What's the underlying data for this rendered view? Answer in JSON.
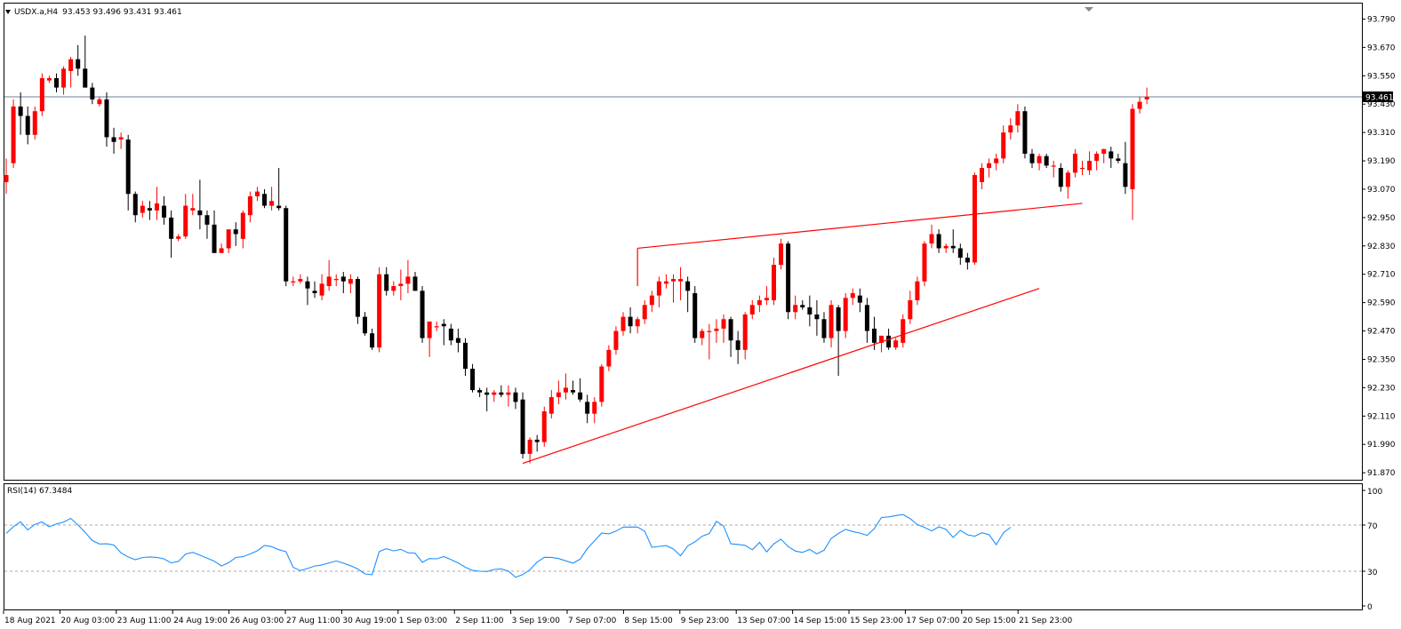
{
  "header": {
    "symbol": "USDX.a,H4",
    "open": "93.453",
    "high": "93.496",
    "low": "93.431",
    "close": "93.461"
  },
  "rsi_header": {
    "label": "RSI(14) 67.3484"
  },
  "colors": {
    "bull": "#ff0000",
    "bear": "#000000",
    "grid_line": "#708090",
    "trendline": "#ff0000",
    "rsi_line": "#1e90ff",
    "price_tag_bg": "#000000",
    "price_tag_text": "#ffffff"
  },
  "chart_data": [
    {
      "type": "candlestick",
      "ylim": [
        91.83,
        93.83
      ],
      "yticks": [
        "93.790",
        "93.670",
        "93.550",
        "93.430",
        "93.310",
        "93.190",
        "93.070",
        "92.950",
        "92.830",
        "92.710",
        "92.590",
        "92.470",
        "92.350",
        "92.230",
        "92.110",
        "91.990",
        "91.870"
      ],
      "current_price": {
        "value": 93.461,
        "label": "93.461"
      },
      "xtick_labels": [
        "18 Aug 2021",
        "20 Aug 03:00",
        "23 Aug 11:00",
        "24 Aug 19:00",
        "26 Aug 03:00",
        "27 Aug 11:00",
        "30 Aug 19:00",
        "1 Sep 03:00",
        "2 Sep 11:00",
        "3 Sep 19:00",
        "7 Sep 07:00",
        "8 Sep 15:00",
        "9 Sep 23:00",
        "13 Sep 07:00",
        "14 Sep 15:00",
        "15 Sep 23:00",
        "17 Sep 07:00",
        "20 Sep 15:00",
        "21 Sep 23:00"
      ],
      "candles": [
        [
          93.1,
          93.2,
          93.05,
          93.13
        ],
        [
          93.18,
          93.45,
          93.16,
          93.42
        ],
        [
          93.42,
          93.48,
          93.3,
          93.38
        ],
        [
          93.38,
          93.42,
          93.26,
          93.3
        ],
        [
          93.3,
          93.42,
          93.28,
          93.4
        ],
        [
          93.4,
          93.56,
          93.38,
          93.54
        ],
        [
          93.53,
          93.55,
          93.52,
          93.54
        ],
        [
          93.54,
          93.56,
          93.48,
          93.5
        ],
        [
          93.5,
          93.59,
          93.47,
          93.58
        ],
        [
          93.57,
          93.63,
          93.5,
          93.62
        ],
        [
          93.62,
          93.68,
          93.55,
          93.58
        ],
        [
          93.58,
          93.72,
          93.5,
          93.5
        ],
        [
          93.5,
          93.52,
          93.43,
          93.45
        ],
        [
          93.43,
          93.46,
          93.42,
          93.45
        ],
        [
          93.45,
          93.48,
          93.25,
          93.29
        ],
        [
          93.29,
          93.33,
          93.22,
          93.27
        ],
        [
          93.28,
          93.31,
          93.24,
          93.29
        ],
        [
          93.28,
          93.3,
          92.98,
          93.05
        ],
        [
          93.05,
          93.06,
          92.93,
          92.96
        ],
        [
          92.97,
          93.02,
          92.95,
          93.0
        ],
        [
          92.99,
          93.02,
          92.94,
          92.98
        ],
        [
          92.98,
          93.08,
          92.94,
          93.01
        ],
        [
          93.0,
          93.04,
          92.92,
          92.95
        ],
        [
          92.95,
          92.98,
          92.78,
          92.86
        ],
        [
          92.86,
          92.88,
          92.85,
          92.87
        ],
        [
          92.87,
          93.05,
          92.86,
          93.0
        ],
        [
          92.98,
          93.05,
          92.96,
          92.99
        ],
        [
          92.98,
          93.11,
          92.9,
          92.96
        ],
        [
          92.96,
          92.98,
          92.86,
          92.92
        ],
        [
          92.92,
          92.98,
          92.8,
          92.8
        ],
        [
          92.8,
          92.84,
          92.8,
          92.82
        ],
        [
          92.82,
          92.9,
          92.8,
          92.9
        ],
        [
          92.9,
          92.93,
          92.83,
          92.88
        ],
        [
          92.86,
          92.98,
          92.82,
          92.97
        ],
        [
          92.96,
          93.06,
          92.93,
          93.04
        ],
        [
          93.04,
          93.08,
          93.02,
          93.06
        ],
        [
          93.05,
          93.07,
          92.99,
          93.0
        ],
        [
          93.0,
          93.08,
          92.98,
          93.02
        ],
        [
          93.0,
          93.16,
          92.98,
          92.99
        ],
        [
          92.99,
          93.0,
          92.66,
          92.68
        ],
        [
          92.68,
          92.7,
          92.66,
          92.68
        ],
        [
          92.68,
          92.71,
          92.67,
          92.69
        ],
        [
          92.68,
          92.7,
          92.58,
          92.65
        ],
        [
          92.64,
          92.68,
          92.61,
          92.63
        ],
        [
          92.62,
          92.71,
          92.6,
          92.67
        ],
        [
          92.66,
          92.77,
          92.64,
          92.7
        ],
        [
          92.69,
          92.71,
          92.66,
          92.69
        ],
        [
          92.7,
          92.72,
          92.63,
          92.68
        ],
        [
          92.67,
          92.71,
          92.63,
          92.69
        ],
        [
          92.69,
          92.7,
          92.5,
          92.53
        ],
        [
          92.53,
          92.55,
          92.45,
          92.46
        ],
        [
          92.46,
          92.48,
          92.39,
          92.4
        ],
        [
          92.4,
          92.74,
          92.38,
          92.71
        ],
        [
          92.71,
          92.74,
          92.62,
          92.64
        ],
        [
          92.64,
          92.68,
          92.62,
          92.66
        ],
        [
          92.66,
          92.73,
          92.6,
          92.67
        ],
        [
          92.67,
          92.77,
          92.63,
          92.7
        ],
        [
          92.7,
          92.72,
          92.64,
          92.64
        ],
        [
          92.64,
          92.66,
          92.42,
          92.44
        ],
        [
          92.44,
          92.51,
          92.36,
          92.51
        ],
        [
          92.49,
          92.51,
          92.47,
          92.49
        ],
        [
          92.5,
          92.52,
          92.41,
          92.49
        ],
        [
          92.48,
          92.5,
          92.41,
          92.43
        ],
        [
          92.44,
          92.48,
          92.38,
          92.42
        ],
        [
          92.42,
          92.44,
          92.28,
          92.31
        ],
        [
          92.31,
          92.33,
          92.21,
          92.22
        ],
        [
          92.22,
          92.23,
          92.19,
          92.21
        ],
        [
          92.21,
          92.23,
          92.13,
          92.2
        ],
        [
          92.2,
          92.22,
          92.17,
          92.21
        ],
        [
          92.21,
          92.24,
          92.19,
          92.2
        ],
        [
          92.2,
          92.24,
          92.15,
          92.21
        ],
        [
          92.21,
          92.23,
          92.14,
          92.17
        ],
        [
          92.18,
          92.21,
          91.93,
          91.95
        ],
        [
          91.95,
          92.02,
          91.91,
          92.01
        ],
        [
          92.01,
          92.03,
          91.96,
          92.0
        ],
        [
          92.0,
          92.15,
          91.98,
          92.13
        ],
        [
          92.12,
          92.22,
          92.1,
          92.19
        ],
        [
          92.19,
          92.26,
          92.16,
          92.21
        ],
        [
          92.21,
          92.29,
          92.18,
          92.23
        ],
        [
          92.22,
          92.26,
          92.2,
          92.21
        ],
        [
          92.21,
          92.27,
          92.17,
          92.18
        ],
        [
          92.17,
          92.2,
          92.08,
          92.12
        ],
        [
          92.12,
          92.19,
          92.08,
          92.17
        ],
        [
          92.17,
          92.33,
          92.15,
          92.32
        ],
        [
          92.32,
          92.41,
          92.3,
          92.39
        ],
        [
          92.39,
          92.49,
          92.37,
          92.47
        ],
        [
          92.47,
          92.55,
          92.45,
          92.53
        ],
        [
          92.53,
          92.57,
          92.46,
          92.49
        ],
        [
          92.49,
          92.53,
          92.46,
          92.52
        ],
        [
          92.52,
          92.6,
          92.5,
          92.58
        ],
        [
          92.58,
          92.64,
          92.55,
          92.62
        ],
        [
          92.62,
          92.7,
          92.57,
          92.68
        ],
        [
          92.67,
          92.71,
          92.65,
          92.68
        ],
        [
          92.68,
          92.71,
          92.59,
          92.69
        ],
        [
          92.68,
          92.74,
          92.6,
          92.69
        ],
        [
          92.68,
          92.7,
          92.55,
          92.64
        ],
        [
          92.63,
          92.66,
          92.42,
          92.44
        ],
        [
          92.44,
          92.48,
          92.41,
          92.47
        ],
        [
          92.47,
          92.5,
          92.35,
          92.47
        ],
        [
          92.47,
          92.52,
          92.42,
          92.48
        ],
        [
          92.48,
          92.54,
          92.42,
          92.52
        ],
        [
          92.52,
          92.53,
          92.36,
          92.43
        ],
        [
          92.43,
          92.47,
          92.33,
          92.39
        ],
        [
          92.39,
          92.55,
          92.35,
          92.54
        ],
        [
          92.54,
          92.6,
          92.52,
          92.58
        ],
        [
          92.58,
          92.62,
          92.55,
          92.6
        ],
        [
          92.6,
          92.66,
          92.58,
          92.61
        ],
        [
          92.6,
          92.78,
          92.58,
          92.75
        ],
        [
          92.75,
          92.86,
          92.73,
          92.84
        ],
        [
          92.84,
          92.85,
          92.52,
          92.55
        ],
        [
          92.55,
          92.62,
          92.52,
          92.58
        ],
        [
          92.58,
          92.6,
          92.56,
          92.57
        ],
        [
          92.57,
          92.62,
          92.49,
          92.54
        ],
        [
          92.54,
          92.6,
          92.45,
          92.52
        ],
        [
          92.52,
          92.55,
          92.42,
          92.44
        ],
        [
          92.44,
          92.6,
          92.4,
          92.58
        ],
        [
          92.57,
          92.58,
          92.28,
          92.47
        ],
        [
          92.47,
          92.63,
          92.44,
          92.61
        ],
        [
          92.61,
          92.65,
          92.58,
          92.63
        ],
        [
          92.62,
          92.65,
          92.55,
          92.59
        ],
        [
          92.58,
          92.61,
          92.42,
          92.47
        ],
        [
          92.48,
          92.53,
          92.39,
          92.42
        ],
        [
          92.42,
          92.45,
          92.38,
          92.45
        ],
        [
          92.45,
          92.48,
          92.39,
          92.4
        ],
        [
          92.4,
          92.44,
          92.39,
          92.43
        ],
        [
          92.42,
          92.54,
          92.4,
          92.52
        ],
        [
          92.52,
          92.64,
          92.5,
          92.6
        ],
        [
          92.6,
          92.7,
          92.58,
          92.68
        ],
        [
          92.68,
          92.85,
          92.66,
          92.84
        ],
        [
          92.84,
          92.92,
          92.82,
          92.88
        ],
        [
          92.88,
          92.9,
          92.8,
          92.82
        ],
        [
          92.82,
          92.84,
          92.8,
          92.83
        ],
        [
          92.83,
          92.9,
          92.8,
          92.82
        ],
        [
          92.82,
          92.84,
          92.75,
          92.78
        ],
        [
          92.78,
          92.8,
          92.73,
          92.76
        ],
        [
          92.76,
          93.14,
          92.75,
          93.13
        ],
        [
          93.1,
          93.18,
          93.07,
          93.16
        ],
        [
          93.16,
          93.2,
          93.12,
          93.18
        ],
        [
          93.18,
          93.22,
          93.15,
          93.2
        ],
        [
          93.2,
          93.34,
          93.18,
          93.31
        ],
        [
          93.31,
          93.37,
          93.28,
          93.34
        ],
        [
          93.34,
          93.43,
          93.31,
          93.4
        ],
        [
          93.4,
          93.42,
          93.2,
          93.22
        ],
        [
          93.22,
          93.24,
          93.16,
          93.18
        ],
        [
          93.18,
          93.22,
          93.15,
          93.21
        ],
        [
          93.21,
          93.22,
          93.16,
          93.17
        ],
        [
          93.17,
          93.19,
          93.12,
          93.17
        ],
        [
          93.16,
          93.18,
          93.06,
          93.08
        ],
        [
          93.08,
          93.15,
          93.03,
          93.14
        ],
        [
          93.14,
          93.24,
          93.12,
          93.22
        ],
        [
          93.16,
          93.19,
          93.13,
          93.16
        ],
        [
          93.15,
          93.23,
          93.13,
          93.19
        ],
        [
          93.19,
          93.23,
          93.15,
          93.22
        ],
        [
          93.22,
          93.24,
          93.18,
          93.24
        ],
        [
          93.23,
          93.25,
          93.16,
          93.2
        ],
        [
          93.2,
          93.22,
          93.18,
          93.19
        ],
        [
          93.18,
          93.27,
          93.05,
          93.08
        ],
        [
          93.07,
          93.43,
          92.94,
          93.41
        ],
        [
          93.41,
          93.46,
          93.39,
          93.44
        ],
        [
          93.45,
          93.5,
          93.43,
          93.46
        ]
      ],
      "annotations": [
        {
          "kind": "trendline",
          "from": [
            72,
            91.91
          ],
          "to": [
            144,
            92.65
          ]
        },
        {
          "kind": "trendline",
          "from": [
            88,
            92.82
          ],
          "to": [
            150,
            93.01
          ]
        },
        {
          "kind": "vline",
          "from": [
            88,
            92.82
          ],
          "to": [
            88,
            92.66
          ]
        }
      ]
    },
    {
      "type": "line",
      "name": "RSI(14) 67.3484",
      "ylim": [
        0,
        100
      ],
      "yticks": [
        "100",
        "70",
        "30",
        "0"
      ],
      "levels": [
        70,
        30
      ],
      "values": [
        62.8,
        68.6,
        72.8,
        65.8,
        70.6,
        72.7,
        68.5,
        70.9,
        72.6,
        75.8,
        70.1,
        63.7,
        56.6,
        53.6,
        53.8,
        52.7,
        45.9,
        42.4,
        40.0,
        41.9,
        42.4,
        42.0,
        40.7,
        37.2,
        38.5,
        44.9,
        46.4,
        43.9,
        41.3,
        38.8,
        34.5,
        37.4,
        41.9,
        42.6,
        45.0,
        47.7,
        52.4,
        51.3,
        48.6,
        46.9,
        33.4,
        30.6,
        32.4,
        34.5,
        35.5,
        37.2,
        38.9,
        37.0,
        34.8,
        32.0,
        27.7,
        27.0,
        47.1,
        49.5,
        47.6,
        49.0,
        46.0,
        45.7,
        37.8,
        41.0,
        40.8,
        42.7,
        40.1,
        37.2,
        33.5,
        30.7,
        30.0,
        29.8,
        31.5,
        32.1,
        30.1,
        24.8,
        27.1,
        31.3,
        37.9,
        42.1,
        42.0,
        41.0,
        39.0,
        37.0,
        40.5,
        49.7,
        56.2,
        63.1,
        62.4,
        64.8,
        68.2,
        68.3,
        68.2,
        64.7,
        50.8,
        51.5,
        52.2,
        49.2,
        43.4,
        51.9,
        55.5,
        60.3,
        62.7,
        73.2,
        69.1,
        53.8,
        53.2,
        52.4,
        48.6,
        55.0,
        46.8,
        53.8,
        57.8,
        51.4,
        47.5,
        46.3,
        48.9,
        45.0,
        48.2,
        58.5,
        62.7,
        66.3,
        64.4,
        63.1,
        61.1,
        66.9,
        76.5,
        77.1,
        78.2,
        79.1,
        75.6,
        70.5,
        68.0,
        64.9,
        68.5,
        66.2,
        59.2,
        65.5,
        61.5,
        60.4,
        63.3,
        61.6,
        53.0,
        63.3,
        68.0
      ]
    }
  ]
}
